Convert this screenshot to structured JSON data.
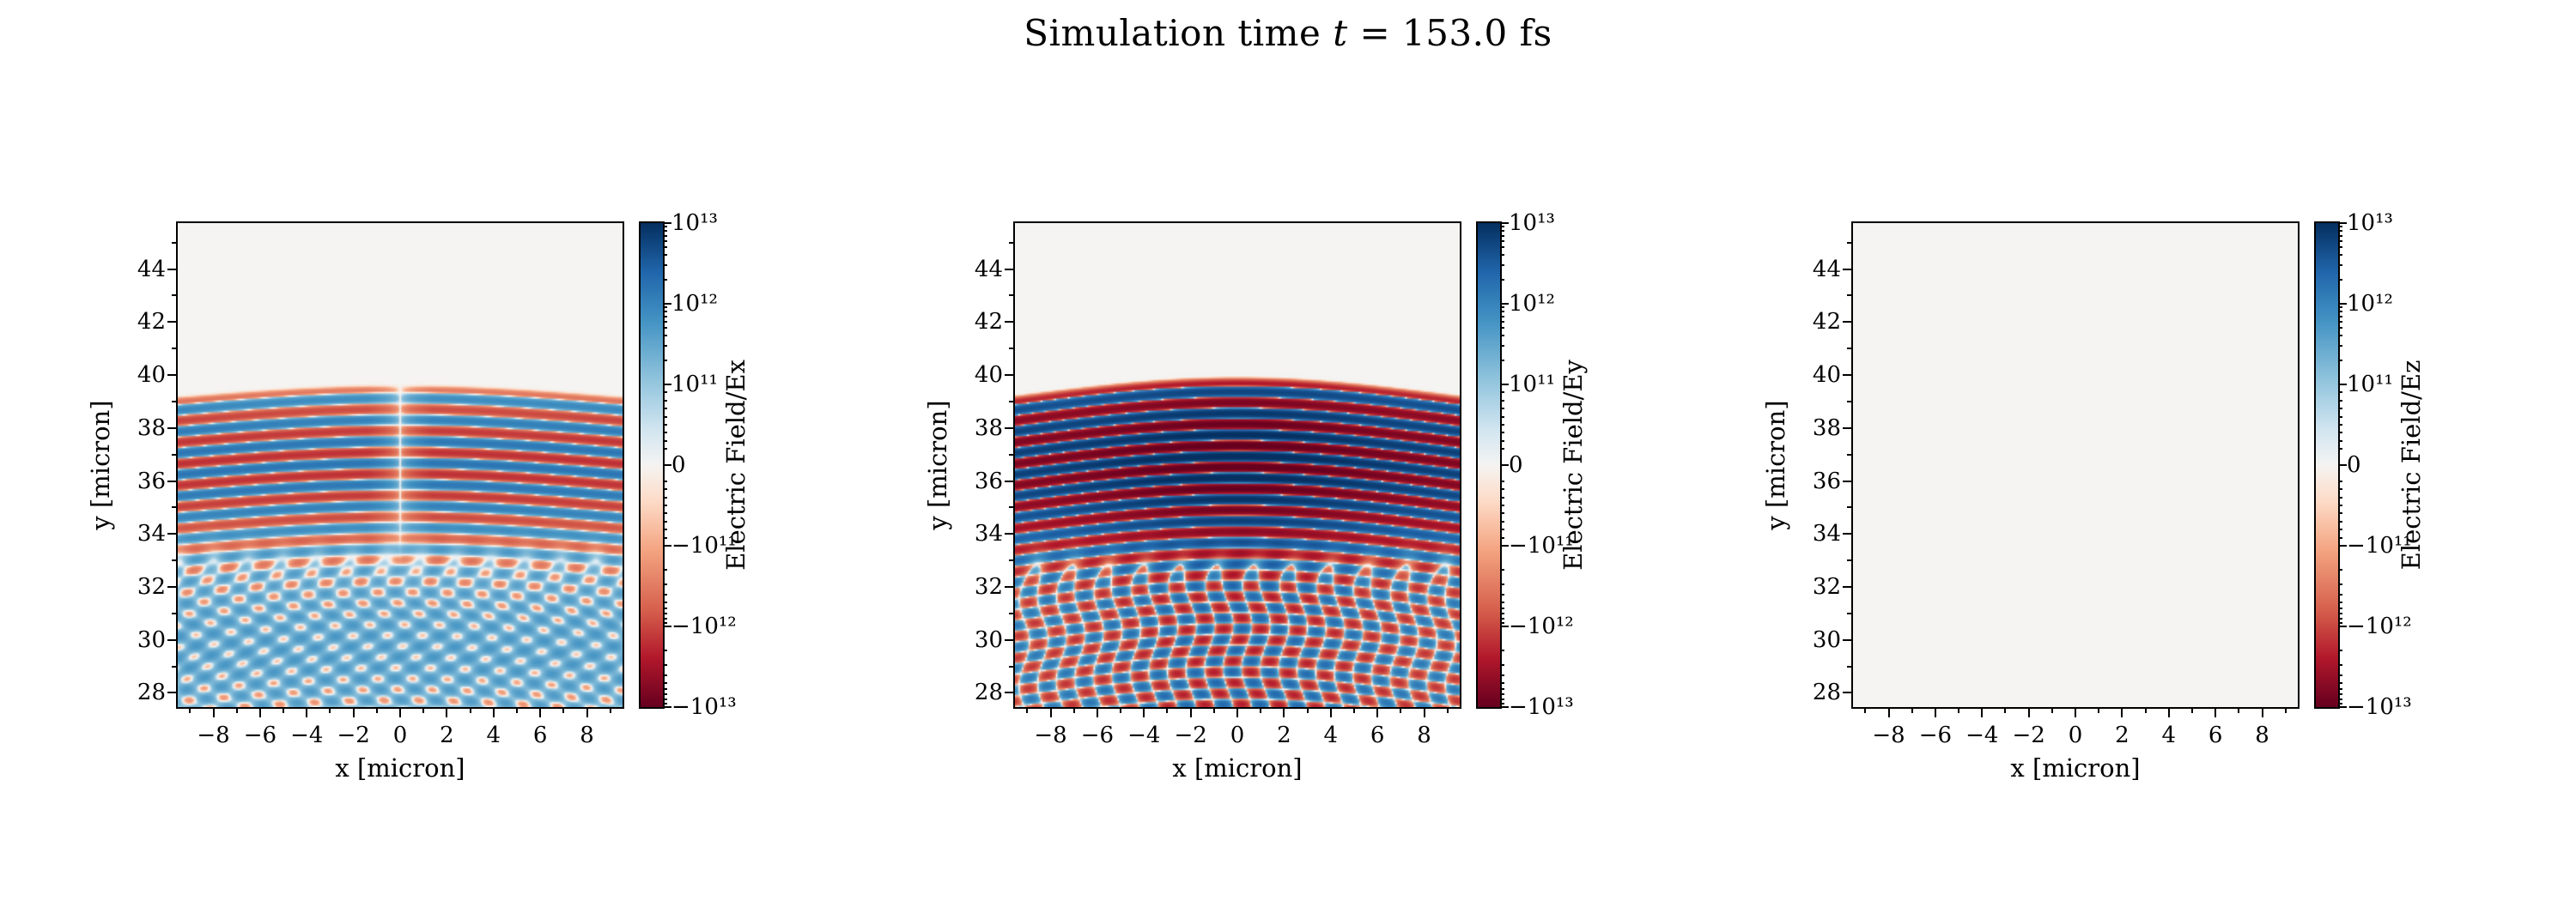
{
  "title": {
    "pre": "Simulation time ",
    "var": "t",
    "post": " = 153.0 fs"
  },
  "colors": {
    "background": "#ffffff",
    "axis": "#000000",
    "zero_field": "#f5f4f2",
    "cmap_stops": [
      [
        -1.0,
        "#67001f"
      ],
      [
        -0.8,
        "#b2182b"
      ],
      [
        -0.6,
        "#d6604d"
      ],
      [
        -0.35,
        "#f4a582"
      ],
      [
        -0.15,
        "#fddbc7"
      ],
      [
        0.0,
        "#f5f4f2"
      ],
      [
        0.15,
        "#d1e5f0"
      ],
      [
        0.35,
        "#92c5de"
      ],
      [
        0.6,
        "#4393c3"
      ],
      [
        0.8,
        "#2166ac"
      ],
      [
        1.0,
        "#053061"
      ]
    ]
  },
  "chart_data": [
    {
      "type": "heatmap",
      "field": "Ex",
      "title": "",
      "xlabel": "x [micron]",
      "ylabel": "y [micron]",
      "colorbar_label": "Electric Field/Ex",
      "xlim": [
        -9.6,
        9.6
      ],
      "ylim": [
        27.4,
        45.8
      ],
      "xticks": [
        -8,
        -6,
        -4,
        -2,
        0,
        2,
        4,
        6,
        8
      ],
      "yticks": [
        28,
        30,
        32,
        34,
        36,
        38,
        40,
        42,
        44
      ],
      "minor_step": 1,
      "scale": "symlog",
      "linthresh": 100000000000.0,
      "vmin": -10000000000000.0,
      "vmax": 10000000000000.0,
      "colormap": "RdBu",
      "grid": false,
      "colorbar_ticks": {
        "values": [
          10000000000000.0,
          1000000000000.0,
          100000000000.0,
          0,
          -100000000000.0,
          -1000000000000.0,
          -10000000000000.0
        ],
        "labels": [
          "10¹³",
          "10¹²",
          "10¹¹",
          "0",
          "−10¹¹",
          "−10¹²",
          "−10¹³"
        ]
      },
      "pattern": {
        "kind": "laser-standing-wave",
        "amplitude": 1600000000000.0,
        "wavelength_y": 0.82,
        "surface_y": 38.9,
        "surface_curve": 0.45,
        "peak_y": 36.6,
        "peak_sigma": 2.4,
        "checker_top_y": 33.0,
        "checker_period": 1.5,
        "center_mode": "notch",
        "bias": 250000000000.0,
        "bias_y": 29.6,
        "bias_sigma": 2.6
      },
      "description": "Horizontal red/blue interference stripes (|Ex| ~ 1e12 V/m) between y≈29 and y≈39 micron with a narrow low-amplitude seam at x=0; below y≈33 the stripes break into a checkerboard interference lattice fading toward y≈28; field ≈ 0 above y≈39."
    },
    {
      "type": "heatmap",
      "field": "Ey",
      "title": "",
      "xlabel": "x [micron]",
      "ylabel": "y [micron]",
      "colorbar_label": "Electric Field/Ey",
      "xlim": [
        -9.6,
        9.6
      ],
      "ylim": [
        27.4,
        45.8
      ],
      "xticks": [
        -8,
        -6,
        -4,
        -2,
        0,
        2,
        4,
        6,
        8
      ],
      "yticks": [
        28,
        30,
        32,
        34,
        36,
        38,
        40,
        42,
        44
      ],
      "minor_step": 1,
      "scale": "symlog",
      "linthresh": 100000000000.0,
      "vmin": -10000000000000.0,
      "vmax": 10000000000000.0,
      "colormap": "RdBu",
      "grid": false,
      "colorbar_ticks": {
        "values": [
          10000000000000.0,
          1000000000000.0,
          100000000000.0,
          0,
          -100000000000.0,
          -1000000000000.0,
          -10000000000000.0
        ],
        "labels": [
          "10¹³",
          "10¹²",
          "10¹¹",
          "0",
          "−10¹¹",
          "−10¹²",
          "−10¹³"
        ]
      },
      "pattern": {
        "kind": "laser-standing-wave",
        "amplitude": 12000000000000.0,
        "wavelength_y": 0.82,
        "surface_y": 38.9,
        "surface_curve": 0.7,
        "peak_y": 36.8,
        "peak_sigma": 2.6,
        "checker_top_y": 32.8,
        "checker_period": 1.6,
        "center_mode": "boost",
        "bias": 0,
        "bias_y": 0,
        "bias_sigma": 1
      },
      "description": "Strongly saturated (|Ey| ~ 1e13 V/m) arc-shaped red/blue standing-wave stripes between y≈29 and y≈39.5 micron, strongest near x=0; checkerboard interference lattice below y≈33; field ≈ 0 above the curved front."
    },
    {
      "type": "heatmap",
      "field": "Ez",
      "title": "",
      "xlabel": "x [micron]",
      "ylabel": "y [micron]",
      "colorbar_label": "Electric Field/Ez",
      "xlim": [
        -9.6,
        9.6
      ],
      "ylim": [
        27.4,
        45.8
      ],
      "xticks": [
        -8,
        -6,
        -4,
        -2,
        0,
        2,
        4,
        6,
        8
      ],
      "yticks": [
        28,
        30,
        32,
        34,
        36,
        38,
        40,
        42,
        44
      ],
      "minor_step": 1,
      "scale": "symlog",
      "linthresh": 100000000000.0,
      "vmin": -10000000000000.0,
      "vmax": 10000000000000.0,
      "colormap": "RdBu",
      "grid": false,
      "colorbar_ticks": {
        "values": [
          10000000000000.0,
          1000000000000.0,
          100000000000.0,
          0,
          -100000000000.0,
          -1000000000000.0,
          -10000000000000.0
        ],
        "labels": [
          "10¹³",
          "10¹²",
          "10¹¹",
          "0",
          "−10¹¹",
          "−10¹²",
          "−10¹³"
        ]
      },
      "pattern": {
        "kind": "uniform-zero",
        "amplitude": 0,
        "wavelength_y": 0.82,
        "surface_y": 38.9,
        "surface_curve": 0,
        "peak_y": 36.6,
        "peak_sigma": 2.4,
        "checker_top_y": 33.0,
        "checker_period": 1.5,
        "center_mode": "none",
        "bias": 0,
        "bias_y": 0,
        "bias_sigma": 1
      },
      "description": "Ez component is zero everywhere — uniform near-white panel."
    }
  ]
}
